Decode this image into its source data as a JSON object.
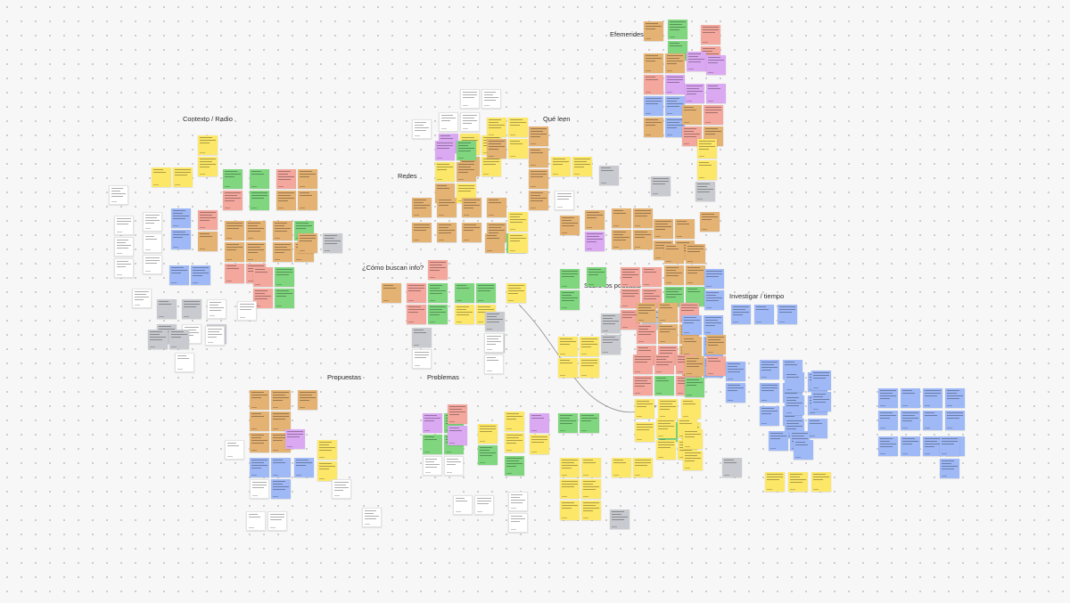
{
  "board": {
    "section_titles": {
      "efemerides": "Efemerides",
      "contexto": "Contexto / Radio",
      "redes": "Redes",
      "que_leen": "Qué leen",
      "como_buscan": "¿Cómo buscan info?",
      "sobre_podcasts": "Sobre los podcasts",
      "investigar": "Investigar / tiempo",
      "propuestas": "Propuestas",
      "problemas": "Problemas"
    },
    "colors": {
      "background": "#f7f7f7",
      "dot": "#c9c9c9",
      "yellow": "#fde768",
      "orange": "#e4b273",
      "green": "#7fd67f",
      "pink": "#f3a79d",
      "purple": "#dba8f2",
      "blue": "#9fb9f7",
      "gray": "#c8cacf",
      "white": "#ffffff",
      "connector": "#8d8d8d"
    },
    "sticky_note_icon": "sticky-note-icon",
    "connector_icon": "arrow-connector-icon"
  }
}
